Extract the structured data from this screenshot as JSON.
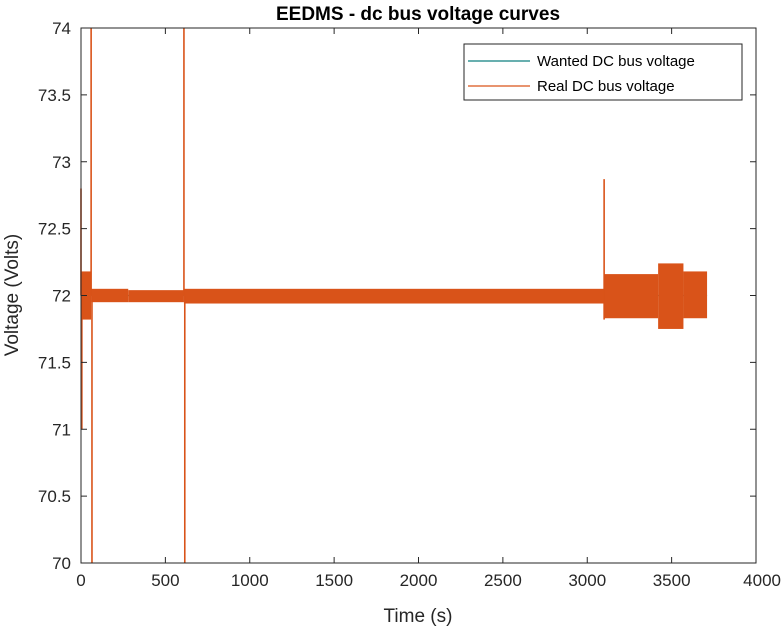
{
  "chart_data": {
    "type": "line",
    "title": "EEDMS - dc bus voltage curves",
    "xlabel": "Time (s)",
    "ylabel": "Voltage (Volts)",
    "xlim": [
      0,
      4000
    ],
    "ylim": [
      70,
      74
    ],
    "xticks": [
      0,
      500,
      1000,
      1500,
      2000,
      2500,
      3000,
      3500,
      4000
    ],
    "yticks": [
      70,
      70.5,
      71,
      71.5,
      72,
      72.5,
      73,
      73.5,
      74
    ],
    "xtick_labels": [
      "0",
      "500",
      "1000",
      "1500",
      "2000",
      "2500",
      "3000",
      "3500",
      "4000"
    ],
    "ytick_labels": [
      "70",
      "70.5",
      "71",
      "71.5",
      "72",
      "72.5",
      "73",
      "73.5",
      "74"
    ],
    "grid": false,
    "legend_position": "top-right",
    "series": [
      {
        "name": "Wanted DC bus voltage",
        "color": "#0f7f7f",
        "x": [
          0,
          3710
        ],
        "y": [
          72,
          72
        ]
      },
      {
        "name": "Real DC bus voltage",
        "color": "#d95319",
        "spikes": [
          {
            "x": 0,
            "y": 72.8
          },
          {
            "x": 5,
            "y": 71.0
          },
          {
            "x": 60,
            "y": 74.0
          },
          {
            "x": 65,
            "y": 70.0
          },
          {
            "x": 610,
            "y": 74.0
          },
          {
            "x": 615,
            "y": 70.0
          },
          {
            "x": 3100,
            "y": 72.87
          },
          {
            "x": 3100,
            "y": 71.82
          }
        ],
        "bands": [
          {
            "x_start": 0,
            "x_end": 60,
            "y_min": 71.82,
            "y_max": 72.18
          },
          {
            "x_start": 60,
            "x_end": 280,
            "y_min": 71.95,
            "y_max": 72.05
          },
          {
            "x_start": 280,
            "x_end": 610,
            "y_min": 71.95,
            "y_max": 72.04
          },
          {
            "x_start": 610,
            "x_end": 3100,
            "y_min": 71.94,
            "y_max": 72.05
          },
          {
            "x_start": 3100,
            "x_end": 3420,
            "y_min": 71.83,
            "y_max": 72.16
          },
          {
            "x_start": 3420,
            "x_end": 3570,
            "y_min": 71.75,
            "y_max": 72.24
          },
          {
            "x_start": 3570,
            "x_end": 3710,
            "y_min": 71.83,
            "y_max": 72.18
          }
        ]
      }
    ]
  }
}
